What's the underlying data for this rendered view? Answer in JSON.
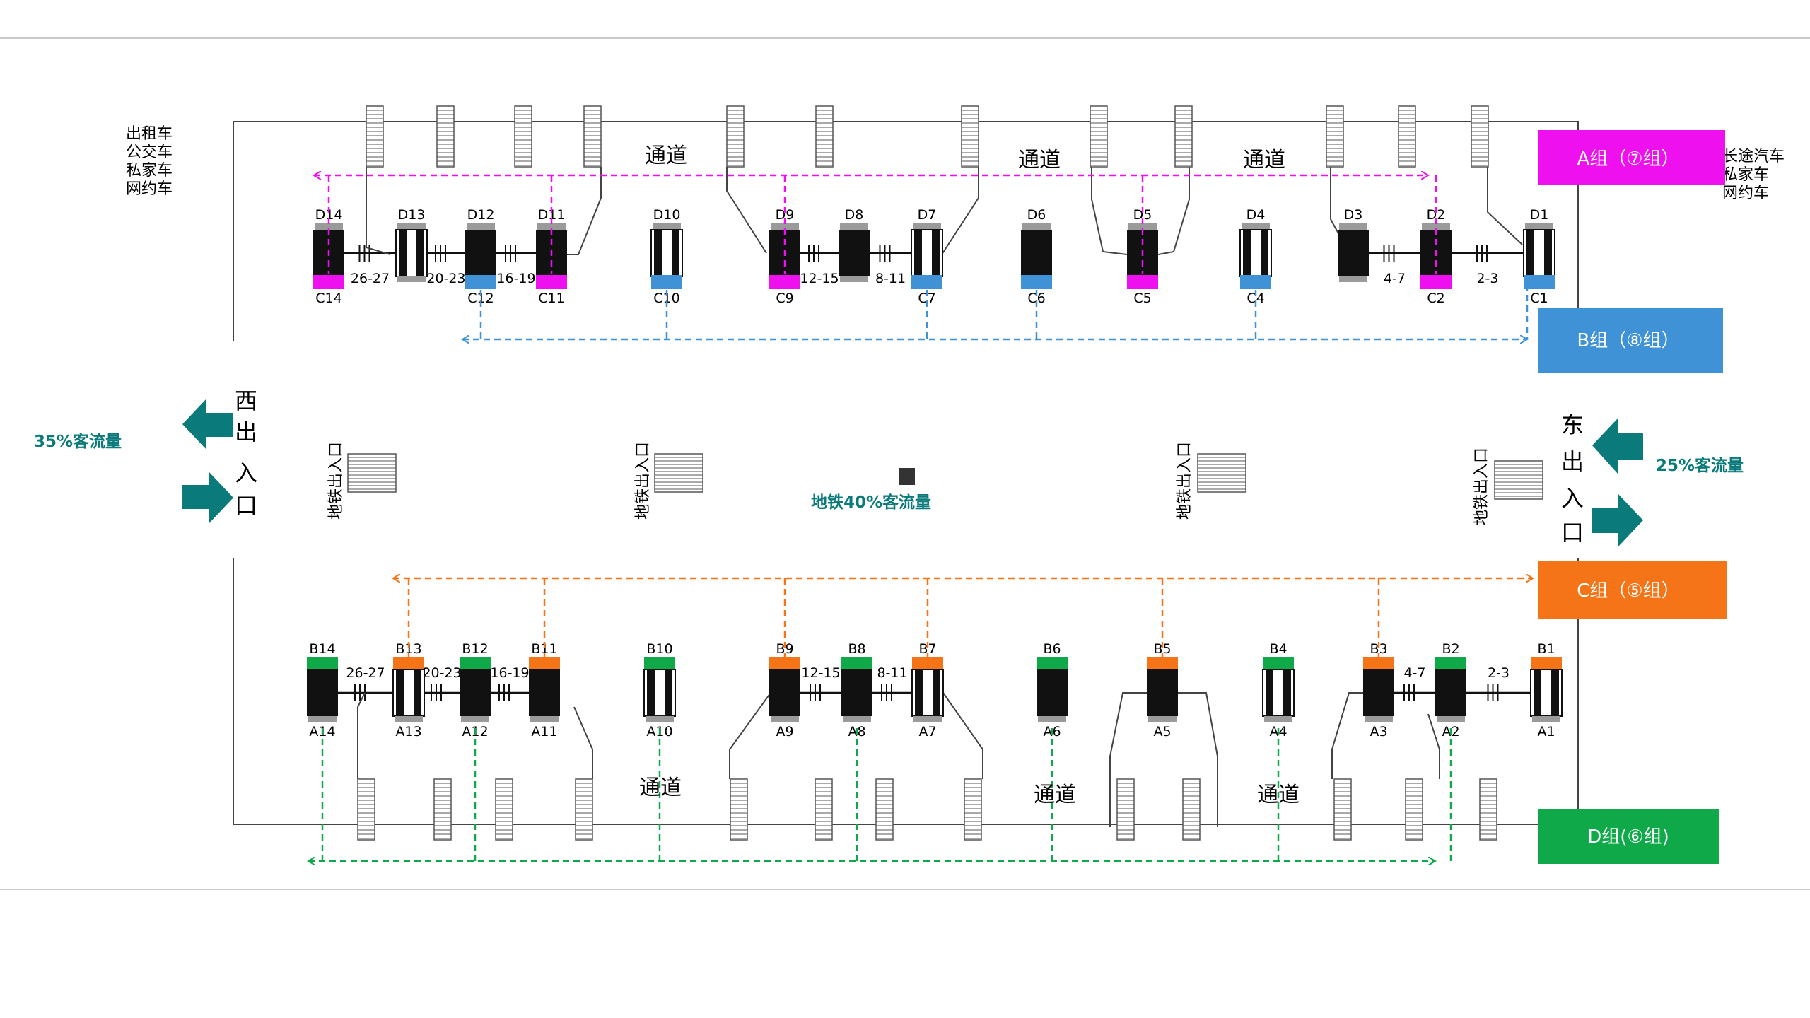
{
  "top_left_vehicles": [
    "出租车",
    "公交车",
    "私家车",
    "网约车"
  ],
  "top_right_vehicles": [
    "长途汽车",
    "私家车",
    "网约车"
  ],
  "groups": {
    "A": {
      "label": "A组（⑦组）",
      "color": "#ee10ee"
    },
    "B": {
      "label": "B组（⑧组）",
      "color": "#3f92d6"
    },
    "C": {
      "label": "C组（⑤组）",
      "color": "#f57418"
    },
    "D": {
      "label": "D组(⑥组)",
      "color": "#10a94a"
    }
  },
  "west_gate": {
    "chars": [
      "西",
      "出",
      "入",
      "口"
    ],
    "flow": "35%客流量"
  },
  "east_gate": {
    "chars": [
      "东",
      "出",
      "入",
      "口"
    ],
    "flow": "25%客流量"
  },
  "metro": {
    "entrance_label": "地铁出入口",
    "flow": "地铁40%客流量"
  },
  "passage_label": "通道",
  "top_stands": [
    {
      "d": "D14",
      "c": "C14",
      "top": "A"
    },
    {
      "d": "D13",
      "c": "",
      "top": "none"
    },
    {
      "d": "D12",
      "c": "C12",
      "top": "B"
    },
    {
      "d": "D11",
      "c": "C11",
      "top": "A"
    },
    {
      "d": "D10",
      "c": "C10",
      "top": "B"
    },
    {
      "d": "D9",
      "c": "C9",
      "top": "A"
    },
    {
      "d": "D8",
      "c": "",
      "top": "none"
    },
    {
      "d": "D7",
      "c": "C7",
      "top": "B"
    },
    {
      "d": "D6",
      "c": "C6",
      "top": "B"
    },
    {
      "d": "D5",
      "c": "C5",
      "top": "A"
    },
    {
      "d": "D4",
      "c": "C4",
      "top": "B"
    },
    {
      "d": "D3",
      "c": "",
      "top": "none"
    },
    {
      "d": "D2",
      "c": "C2",
      "top": "A"
    },
    {
      "d": "D1",
      "c": "C1",
      "top": "B"
    }
  ],
  "bottom_stands": [
    {
      "b": "B14",
      "a": "A14",
      "group": "D"
    },
    {
      "b": "B13",
      "a": "A13",
      "group": "C"
    },
    {
      "b": "B12",
      "a": "A12",
      "group": "D"
    },
    {
      "b": "B11",
      "a": "A11",
      "group": "C"
    },
    {
      "b": "B10",
      "a": "A10",
      "group": "D"
    },
    {
      "b": "B9",
      "a": "A9",
      "group": "C"
    },
    {
      "b": "B8",
      "a": "A8",
      "group": "D"
    },
    {
      "b": "B7",
      "a": "A7",
      "group": "C"
    },
    {
      "b": "B6",
      "a": "A6",
      "group": "D"
    },
    {
      "b": "B5",
      "a": "A5",
      "group": "C"
    },
    {
      "b": "B4",
      "a": "A4",
      "group": "D"
    },
    {
      "b": "B3",
      "a": "A3",
      "group": "C"
    },
    {
      "b": "B2",
      "a": "A2",
      "group": "D"
    },
    {
      "b": "B1",
      "a": "A1",
      "group": "C"
    }
  ],
  "bus_links": [
    "26-27",
    "20-23",
    "16-19",
    "12-15",
    "8-11",
    "4-7",
    "2-3"
  ]
}
